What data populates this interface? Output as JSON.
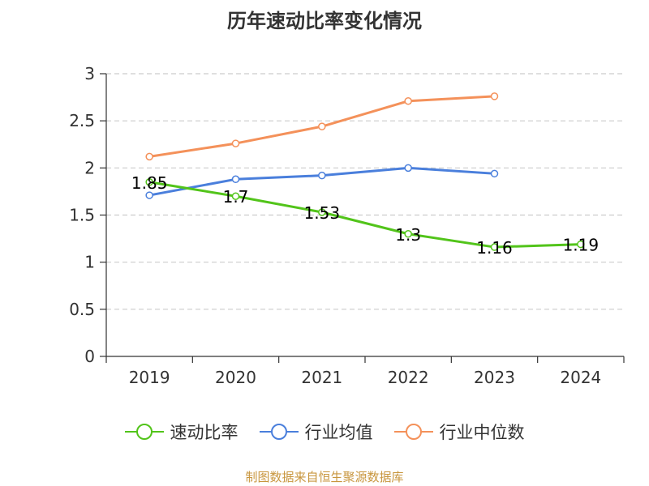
{
  "chart_data": {
    "type": "line",
    "title": "历年速动比率变化情况",
    "categories": [
      "2019",
      "2020",
      "2021",
      "2022",
      "2023",
      "2024"
    ],
    "ylim": [
      0,
      3
    ],
    "yticks": [
      "0",
      "0.5",
      "1",
      "1.5",
      "2",
      "2.5",
      "3"
    ],
    "grid": true,
    "legend_position": "bottom",
    "series": [
      {
        "name": "速动比率",
        "color": "#52c41a",
        "values": [
          1.85,
          1.7,
          1.53,
          1.3,
          1.16,
          1.19
        ],
        "labels": [
          "1.85",
          "1.7",
          "1.53",
          "1.3",
          "1.16",
          "1.19"
        ]
      },
      {
        "name": "行业均值",
        "color": "#4a7fdc",
        "values": [
          1.71,
          1.88,
          1.92,
          2.0,
          1.94,
          null
        ]
      },
      {
        "name": "行业中位数",
        "color": "#f4915a",
        "values": [
          2.12,
          2.26,
          2.44,
          2.71,
          2.76,
          null
        ]
      }
    ]
  },
  "source": "制图数据来自恒生聚源数据库"
}
